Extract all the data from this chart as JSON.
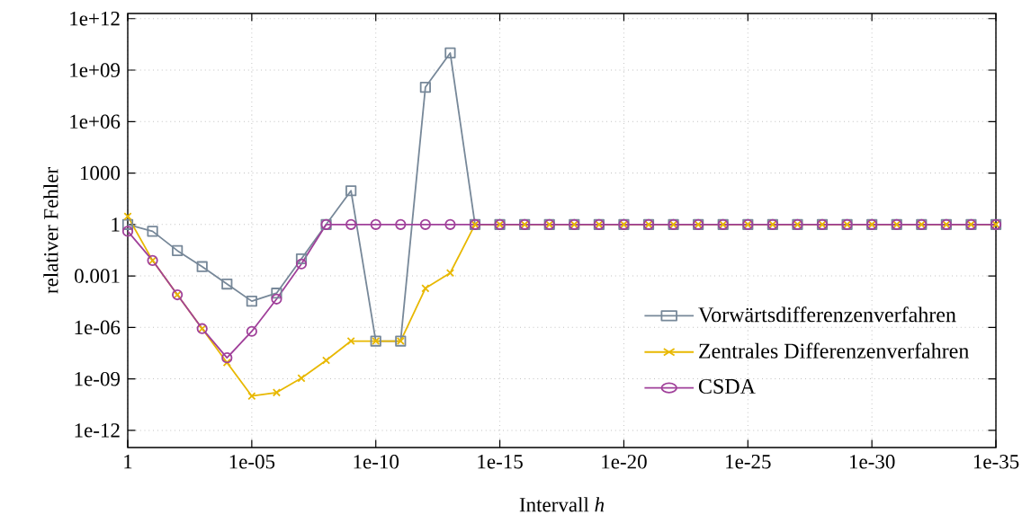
{
  "chart_data": {
    "type": "line",
    "xlabel": "Intervall *h*",
    "ylabel": "relativer Fehler",
    "x": [
      1,
      0.1,
      0.01,
      0.001,
      0.0001,
      1e-05,
      1e-06,
      1e-07,
      1e-08,
      1e-09,
      1e-10,
      1e-11,
      1e-12,
      1e-13,
      1e-14,
      1e-15,
      1e-16,
      1e-17,
      1e-18,
      1e-19,
      1e-20,
      1e-21,
      1e-22,
      1e-23,
      1e-24,
      1e-25,
      1e-26,
      1e-27,
      1e-28,
      1e-29,
      1e-30,
      1e-31,
      1e-32,
      1e-33,
      1e-34,
      1e-35
    ],
    "series": [
      {
        "name": "Vorwärtsdifferenzenverfahren",
        "color": "#778899",
        "marker": "square",
        "values": [
          1,
          0.4,
          0.03,
          0.0035,
          0.00034,
          3.4e-05,
          0.0001,
          0.01,
          1,
          93,
          1.6e-07,
          1.6e-07,
          100000000.0,
          10000000000.0,
          1,
          1,
          1,
          1,
          1,
          1,
          1,
          1,
          1,
          1,
          1,
          1,
          1,
          1,
          1,
          1,
          1,
          1,
          1,
          1,
          1,
          1
        ]
      },
      {
        "name": "Zentrales Differenzenverfahren",
        "color": "#e8b800",
        "marker": "cross",
        "values": [
          3,
          0.008,
          8e-05,
          8.5e-07,
          9e-09,
          1e-10,
          1.6e-10,
          1.1e-09,
          1.2e-08,
          1.6e-07,
          1.6e-07,
          1.6e-07,
          0.00019,
          0.0015,
          1,
          1,
          1,
          1,
          1,
          1,
          1,
          1,
          1,
          1,
          1,
          1,
          1,
          1,
          1,
          1,
          1,
          1,
          1,
          1,
          1,
          1
        ]
      },
      {
        "name": "CSDA",
        "color": "#a0409a",
        "marker": "circle",
        "values": [
          0.4,
          0.008,
          8e-05,
          8.5e-07,
          1.7e-08,
          5.9e-07,
          4.5e-05,
          0.005,
          1,
          1,
          1,
          1,
          1,
          1,
          1,
          1,
          1,
          1,
          1,
          1,
          1,
          1,
          1,
          1,
          1,
          1,
          1,
          1,
          1,
          1,
          1,
          1,
          1,
          1,
          1,
          1
        ]
      }
    ],
    "log": "xy",
    "xlim": [
      1,
      1e-35
    ],
    "ylim": [
      1e-13,
      2000000000000.0
    ],
    "xticks": [
      1,
      {
        "value": 1e-05,
        "label": "1e-05"
      },
      {
        "value": 1e-10,
        "label": "1e-10"
      },
      {
        "value": 1e-15,
        "label": "1e-15"
      },
      {
        "value": 1e-20,
        "label": "1e-20"
      },
      {
        "value": 1e-25,
        "label": "1e-25"
      },
      {
        "value": 1e-30,
        "label": "1e-30"
      },
      {
        "value": 1e-35,
        "label": "1e-35"
      }
    ],
    "yticks": [
      {
        "value": 1e-12,
        "label": "1e-12"
      },
      {
        "value": 1e-09,
        "label": "1e-09"
      },
      {
        "value": 1e-06,
        "label": "1e-06"
      },
      0.001,
      1,
      1000,
      {
        "value": 1000000.0,
        "label": "1e+06"
      },
      {
        "value": 1000000000.0,
        "label": "1e+09"
      },
      {
        "value": 1000000000000.0,
        "label": "1e+12"
      }
    ],
    "grid": true,
    "legend": "bottom right",
    "line_style": "solid"
  }
}
